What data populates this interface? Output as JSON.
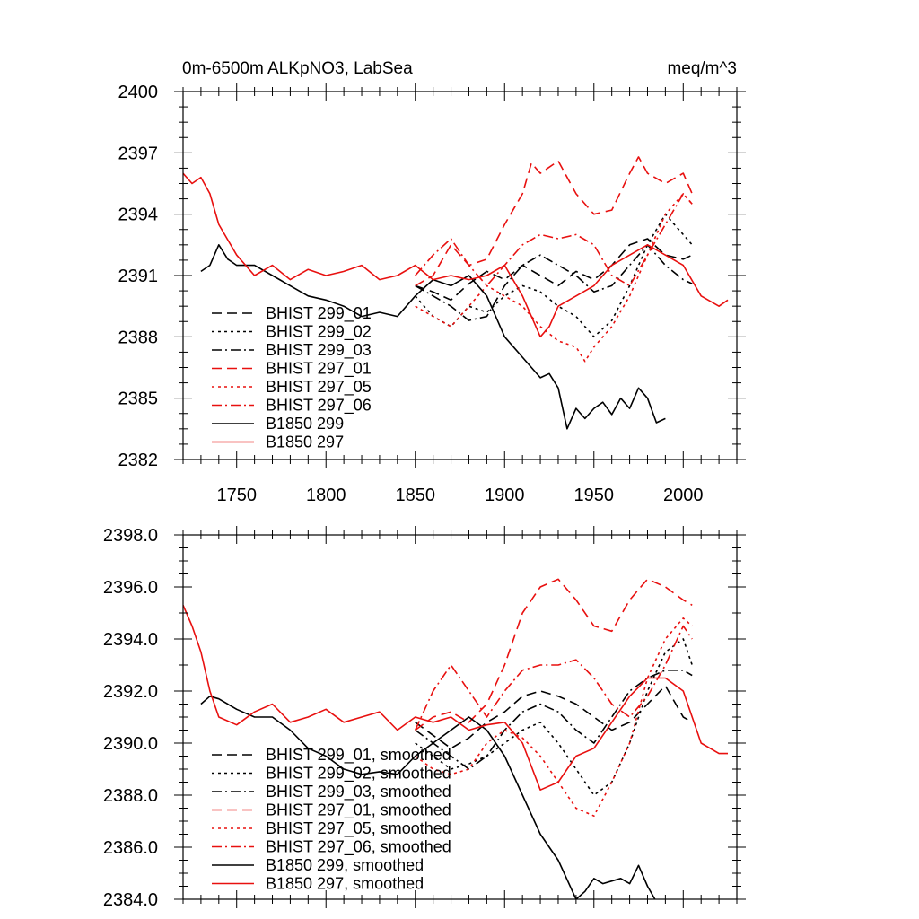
{
  "chart_data": [
    {
      "type": "line",
      "title": "0m-6500m ALKpNO3, LabSea",
      "units": "meq/m^3",
      "xlim": [
        1720,
        2030
      ],
      "ylim": [
        2382,
        2400
      ],
      "xticks": [
        1750,
        1800,
        1850,
        1900,
        1950,
        2000
      ],
      "xtick_labels": [
        "1750",
        "1800",
        "1850",
        "1900",
        "1950",
        "2000"
      ],
      "yticks": [
        2382,
        2385,
        2388,
        2391,
        2394,
        2397,
        2400
      ],
      "ytick_labels": [
        "2382",
        "2385",
        "2388",
        "2391",
        "2394",
        "2397",
        "2400"
      ],
      "legend_position": "bottom-left",
      "series": [
        {
          "name": "BHIST 299_01",
          "color": "#000000",
          "dash": "dash",
          "x": [
            1850,
            1860,
            1870,
            1880,
            1890,
            1900,
            1910,
            1920,
            1930,
            1940,
            1950,
            1960,
            1970,
            1980,
            1990,
            2000,
            2005
          ],
          "y": [
            2390.5,
            2390.2,
            2389.8,
            2390.6,
            2391.2,
            2390.8,
            2391.5,
            2391.0,
            2390.5,
            2391.2,
            2390.8,
            2391.5,
            2392.5,
            2392.8,
            2392.0,
            2391.8,
            2392.0
          ]
        },
        {
          "name": "BHIST 299_02",
          "color": "#000000",
          "dash": "dot",
          "x": [
            1850,
            1860,
            1870,
            1880,
            1890,
            1900,
            1910,
            1920,
            1930,
            1940,
            1950,
            1960,
            1970,
            1980,
            1990,
            2000,
            2005
          ],
          "y": [
            2390.0,
            2389.0,
            2388.5,
            2389.5,
            2389.2,
            2390.0,
            2390.5,
            2390.2,
            2389.5,
            2389.0,
            2388.0,
            2388.8,
            2390.5,
            2392.5,
            2394.0,
            2393.0,
            2392.5
          ]
        },
        {
          "name": "BHIST 299_03",
          "color": "#000000",
          "dash": "dashdot",
          "x": [
            1850,
            1860,
            1870,
            1880,
            1890,
            1900,
            1910,
            1920,
            1930,
            1940,
            1950,
            1960,
            1970,
            1980,
            1990,
            2000,
            2005
          ],
          "y": [
            2390.5,
            2390.0,
            2389.5,
            2388.8,
            2389.0,
            2390.5,
            2391.5,
            2392.0,
            2391.5,
            2391.0,
            2390.2,
            2390.5,
            2391.5,
            2392.5,
            2391.5,
            2390.8,
            2390.6
          ]
        },
        {
          "name": "BHIST 297_01",
          "color": "#e8100f",
          "dash": "dash",
          "x": [
            1850,
            1860,
            1870,
            1880,
            1890,
            1900,
            1910,
            1915,
            1920,
            1930,
            1940,
            1950,
            1960,
            1970,
            1975,
            1980,
            1990,
            2000,
            2005
          ],
          "y": [
            2390.5,
            2391.0,
            2392.5,
            2391.5,
            2391.8,
            2393.5,
            2395.0,
            2396.5,
            2396.0,
            2396.6,
            2395.0,
            2394.0,
            2394.2,
            2396.0,
            2396.8,
            2396.0,
            2395.5,
            2396.0,
            2395.0
          ]
        },
        {
          "name": "BHIST 297_05",
          "color": "#e8100f",
          "dash": "dot",
          "x": [
            1850,
            1860,
            1870,
            1880,
            1890,
            1900,
            1910,
            1920,
            1930,
            1940,
            1945,
            1950,
            1960,
            1970,
            1980,
            1990,
            2000,
            2005
          ],
          "y": [
            2389.5,
            2389.0,
            2388.5,
            2389.5,
            2390.5,
            2390.0,
            2389.5,
            2388.5,
            2387.8,
            2387.5,
            2386.8,
            2387.5,
            2388.5,
            2390.0,
            2392.0,
            2394.0,
            2395.0,
            2394.5
          ]
        },
        {
          "name": "BHIST 297_06",
          "color": "#e8100f",
          "dash": "dashdot",
          "x": [
            1850,
            1860,
            1870,
            1880,
            1890,
            1900,
            1910,
            1920,
            1930,
            1940,
            1950,
            1960,
            1970,
            1980,
            1990,
            2000,
            2005
          ],
          "y": [
            2391.0,
            2392.0,
            2392.8,
            2391.5,
            2390.5,
            2391.5,
            2392.5,
            2393.0,
            2392.8,
            2393.0,
            2392.5,
            2391.0,
            2390.5,
            2392.0,
            2393.5,
            2395.0,
            2394.5
          ]
        },
        {
          "name": "B1850 299",
          "color": "#000000",
          "dash": "solid",
          "x": [
            1730,
            1735,
            1740,
            1745,
            1750,
            1760,
            1770,
            1780,
            1790,
            1800,
            1810,
            1820,
            1830,
            1840,
            1850,
            1860,
            1870,
            1880,
            1890,
            1900,
            1905,
            1910,
            1920,
            1925,
            1930,
            1935,
            1940,
            1945,
            1950,
            1955,
            1960,
            1965,
            1970,
            1975,
            1980,
            1985,
            1990
          ],
          "y": [
            2391.2,
            2391.5,
            2392.5,
            2391.8,
            2391.5,
            2391.5,
            2391.0,
            2390.5,
            2390.0,
            2389.8,
            2389.5,
            2389.0,
            2389.2,
            2389.0,
            2390.0,
            2390.8,
            2390.5,
            2391.0,
            2390.0,
            2388.0,
            2387.5,
            2387.0,
            2386.0,
            2386.2,
            2385.5,
            2383.5,
            2384.5,
            2384.0,
            2384.5,
            2384.8,
            2384.2,
            2385.0,
            2384.5,
            2385.5,
            2385.0,
            2383.8,
            2384.0
          ]
        },
        {
          "name": "B1850 297",
          "color": "#e8100f",
          "dash": "solid",
          "x": [
            1720,
            1725,
            1730,
            1735,
            1740,
            1750,
            1760,
            1770,
            1780,
            1790,
            1800,
            1810,
            1820,
            1830,
            1840,
            1850,
            1860,
            1870,
            1880,
            1890,
            1900,
            1910,
            1920,
            1925,
            1930,
            1940,
            1950,
            1960,
            1970,
            1980,
            1990,
            2000,
            2010,
            2020,
            2025
          ],
          "y": [
            2396.0,
            2395.5,
            2395.8,
            2395.0,
            2393.5,
            2392.0,
            2391.0,
            2391.5,
            2390.8,
            2391.3,
            2391.0,
            2391.2,
            2391.5,
            2390.8,
            2391.0,
            2391.5,
            2390.8,
            2391.0,
            2390.8,
            2391.0,
            2391.5,
            2390.0,
            2388.0,
            2388.5,
            2389.5,
            2390.0,
            2390.5,
            2391.5,
            2392.0,
            2392.5,
            2392.0,
            2391.5,
            2390.0,
            2389.5,
            2389.8
          ]
        }
      ]
    },
    {
      "type": "line",
      "title": "",
      "xlim": [
        1720,
        2030
      ],
      "ylim": [
        2384,
        2398
      ],
      "xticks": [
        1750,
        1800,
        1850,
        1900,
        1950,
        2000
      ],
      "yticks": [
        2384,
        2386,
        2388,
        2390,
        2392,
        2394,
        2396,
        2398
      ],
      "ytick_labels": [
        "2384.0",
        "2386.0",
        "2388.0",
        "2390.0",
        "2392.0",
        "2394.0",
        "2396.0",
        "2398.0"
      ],
      "legend_position": "bottom-left",
      "series": [
        {
          "name": "BHIST 299_01, smoothed",
          "color": "#000000",
          "dash": "dash",
          "x": [
            1850,
            1860,
            1870,
            1880,
            1890,
            1900,
            1910,
            1920,
            1930,
            1940,
            1950,
            1960,
            1970,
            1980,
            1990,
            2000,
            2005
          ],
          "y": [
            2390.8,
            2390.3,
            2389.8,
            2390.2,
            2390.8,
            2391.2,
            2391.8,
            2392.0,
            2391.8,
            2391.5,
            2391.0,
            2390.5,
            2390.8,
            2391.5,
            2392.2,
            2391.0,
            2390.8
          ]
        },
        {
          "name": "BHIST 299_02, smoothed",
          "color": "#000000",
          "dash": "dot",
          "x": [
            1850,
            1860,
            1870,
            1880,
            1890,
            1900,
            1910,
            1920,
            1930,
            1940,
            1950,
            1960,
            1970,
            1980,
            1990,
            2000,
            2005
          ],
          "y": [
            2390.0,
            2389.5,
            2389.0,
            2389.2,
            2389.5,
            2390.0,
            2390.5,
            2390.8,
            2390.0,
            2389.0,
            2388.0,
            2388.5,
            2390.0,
            2392.0,
            2393.5,
            2394.0,
            2393.0
          ]
        },
        {
          "name": "BHIST 299_03, smoothed",
          "color": "#000000",
          "dash": "dashdot",
          "x": [
            1850,
            1860,
            1870,
            1880,
            1890,
            1900,
            1910,
            1920,
            1930,
            1940,
            1950,
            1960,
            1970,
            1980,
            1990,
            2000,
            2005
          ],
          "y": [
            2390.5,
            2390.0,
            2389.5,
            2389.0,
            2389.5,
            2390.5,
            2391.2,
            2391.5,
            2391.2,
            2390.5,
            2390.0,
            2391.0,
            2392.0,
            2392.5,
            2392.8,
            2392.8,
            2392.6
          ]
        },
        {
          "name": "BHIST 297_01, smoothed",
          "color": "#e8100f",
          "dash": "dash",
          "x": [
            1850,
            1860,
            1870,
            1880,
            1890,
            1900,
            1910,
            1920,
            1930,
            1940,
            1950,
            1960,
            1970,
            1980,
            1990,
            2000,
            2005
          ],
          "y": [
            2390.5,
            2391.0,
            2391.2,
            2390.8,
            2391.5,
            2393.0,
            2395.0,
            2396.0,
            2396.3,
            2395.5,
            2394.5,
            2394.3,
            2395.5,
            2396.3,
            2396.0,
            2395.5,
            2395.3
          ]
        },
        {
          "name": "BHIST 297_05, smoothed",
          "color": "#e8100f",
          "dash": "dot",
          "x": [
            1850,
            1860,
            1870,
            1880,
            1890,
            1900,
            1910,
            1920,
            1930,
            1940,
            1950,
            1960,
            1970,
            1980,
            1990,
            2000,
            2005
          ],
          "y": [
            2389.5,
            2389.0,
            2388.8,
            2389.0,
            2390.0,
            2390.5,
            2390.2,
            2389.5,
            2388.5,
            2387.5,
            2387.2,
            2388.5,
            2390.0,
            2392.5,
            2394.0,
            2394.8,
            2394.5
          ]
        },
        {
          "name": "BHIST 297_06, smoothed",
          "color": "#e8100f",
          "dash": "dashdot",
          "x": [
            1850,
            1860,
            1870,
            1880,
            1890,
            1900,
            1910,
            1920,
            1930,
            1940,
            1950,
            1960,
            1970,
            1980,
            1990,
            2000,
            2005
          ],
          "y": [
            2390.5,
            2392.0,
            2393.0,
            2392.0,
            2391.0,
            2392.0,
            2392.8,
            2393.0,
            2393.0,
            2393.2,
            2392.5,
            2391.5,
            2391.0,
            2391.8,
            2393.0,
            2394.5,
            2394.0
          ]
        },
        {
          "name": "B1850 299, smoothed",
          "color": "#000000",
          "dash": "solid",
          "x": [
            1730,
            1735,
            1740,
            1750,
            1760,
            1770,
            1780,
            1790,
            1800,
            1810,
            1820,
            1830,
            1840,
            1850,
            1860,
            1870,
            1880,
            1890,
            1900,
            1910,
            1920,
            1930,
            1940,
            1945,
            1950,
            1955,
            1960,
            1965,
            1970,
            1975,
            1980,
            1985
          ],
          "y": [
            2391.5,
            2391.8,
            2391.7,
            2391.3,
            2391.0,
            2391.0,
            2390.5,
            2389.8,
            2389.5,
            2389.0,
            2388.8,
            2388.9,
            2388.8,
            2389.5,
            2390.0,
            2390.5,
            2391.0,
            2390.5,
            2389.5,
            2388.0,
            2386.5,
            2385.5,
            2384.0,
            2384.3,
            2384.8,
            2384.6,
            2384.7,
            2384.8,
            2384.6,
            2385.3,
            2384.5,
            2383.9
          ]
        },
        {
          "name": "B1850 297, smoothed",
          "color": "#e8100f",
          "dash": "solid",
          "x": [
            1720,
            1725,
            1730,
            1735,
            1740,
            1750,
            1760,
            1770,
            1780,
            1790,
            1800,
            1810,
            1820,
            1830,
            1840,
            1850,
            1860,
            1870,
            1880,
            1890,
            1900,
            1910,
            1920,
            1930,
            1940,
            1950,
            1960,
            1970,
            1980,
            1990,
            2000,
            2010,
            2020,
            2025
          ],
          "y": [
            2395.3,
            2394.5,
            2393.5,
            2392.0,
            2391.0,
            2390.7,
            2391.2,
            2391.5,
            2390.8,
            2391.0,
            2391.3,
            2390.8,
            2391.0,
            2391.2,
            2390.5,
            2391.0,
            2390.8,
            2391.0,
            2390.5,
            2390.7,
            2390.8,
            2390.0,
            2388.2,
            2388.5,
            2389.5,
            2389.8,
            2390.8,
            2391.8,
            2392.5,
            2392.5,
            2392.0,
            2390.0,
            2389.6,
            2389.6
          ]
        }
      ]
    }
  ]
}
